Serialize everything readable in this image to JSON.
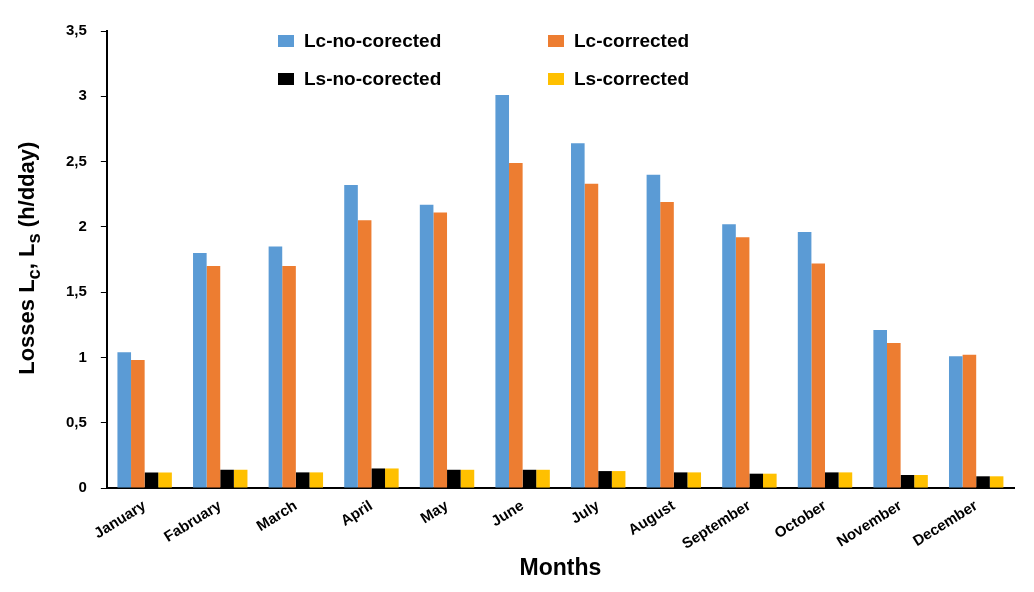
{
  "chart_data": {
    "type": "bar",
    "xlabel": "Months",
    "ylabel": "Losses L$_{c}$, L$_{s}$ (h/dday)",
    "categories": [
      "January",
      "Fabruary",
      "March",
      "April",
      "May",
      "June",
      "July",
      "August",
      "September",
      "October",
      "November",
      "December"
    ],
    "series": [
      {
        "name": "Lc-no-corected",
        "color": "#5b9bd5",
        "values": [
          1.04,
          1.8,
          1.85,
          2.32,
          2.17,
          3.01,
          2.64,
          2.4,
          2.02,
          1.96,
          1.21,
          1.01
        ]
      },
      {
        "name": "Lc-corrected",
        "color": "#ed7d31",
        "values": [
          0.98,
          1.7,
          1.7,
          2.05,
          2.11,
          2.49,
          2.33,
          2.19,
          1.92,
          1.72,
          1.11,
          1.02
        ]
      },
      {
        "name": "Ls-no-corected",
        "color": "#000000",
        "values": [
          0.12,
          0.14,
          0.12,
          0.15,
          0.14,
          0.14,
          0.13,
          0.12,
          0.11,
          0.12,
          0.1,
          0.09
        ]
      },
      {
        "name": "Ls-corrected",
        "color": "#ffc000",
        "values": [
          0.12,
          0.14,
          0.12,
          0.15,
          0.14,
          0.14,
          0.13,
          0.12,
          0.11,
          0.12,
          0.1,
          0.09
        ]
      }
    ],
    "ylim": [
      0,
      3.5
    ],
    "yticks": [
      0,
      {
        "value": 0.5,
        "label": "0,5"
      },
      1,
      {
        "value": 1.5,
        "label": "1,5"
      },
      2,
      {
        "value": 2.5,
        "label": "2,5"
      },
      3,
      {
        "value": 3.5,
        "label": "3,5"
      }
    ],
    "grid": false,
    "legend": "top"
  }
}
